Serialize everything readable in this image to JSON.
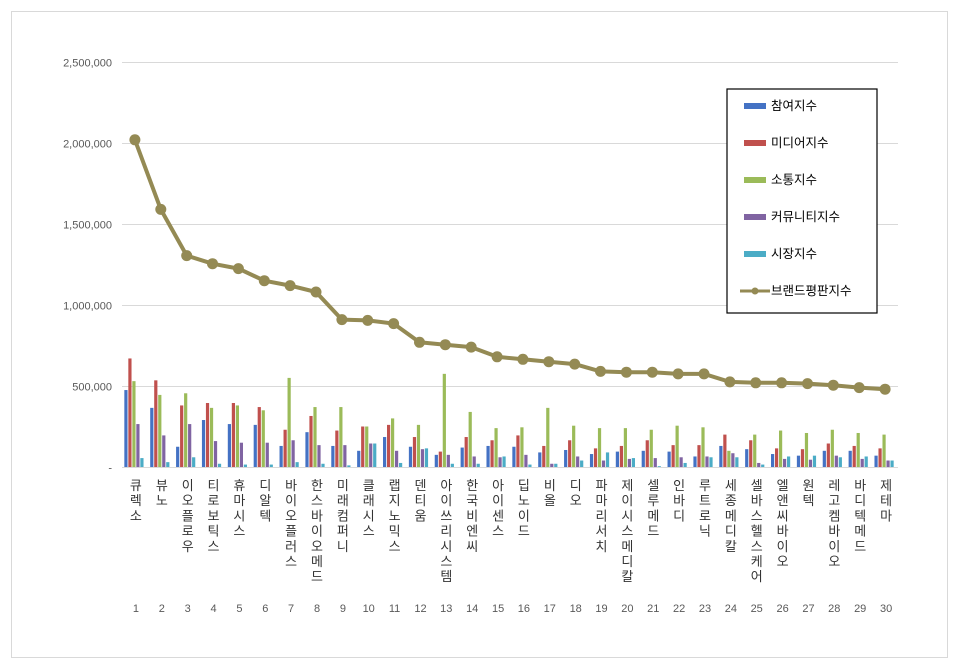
{
  "chart_data": {
    "type": "bar",
    "title": "",
    "xlabel": "",
    "ylabel": "",
    "ylim": [
      0,
      2500000
    ],
    "y_ticks": [
      0,
      500000,
      1000000,
      1500000,
      2000000,
      2500000
    ],
    "y_tick_labels": [
      "-",
      "500,000",
      "1,000,000",
      "1,500,000",
      "2,000,000",
      "2,500,000"
    ],
    "grid": true,
    "legend_position": "top-right",
    "categories": [
      "큐렉소",
      "뷰노",
      "이오플로우",
      "티로보틱스",
      "휴마시스",
      "디알텍",
      "바이오플러스",
      "한스바이오메드",
      "미래컴퍼니",
      "클래시스",
      "랩지노믹스",
      "덴티움",
      "아이쓰리시스템",
      "한국비엔씨",
      "아이센스",
      "딥노이드",
      "비올",
      "디오",
      "파마리서치",
      "제이시스메디칼",
      "셀루메드",
      "인바디",
      "루트로닉",
      "세종메디칼",
      "셀바스헬스케어",
      "엘앤씨바이오",
      "원텍",
      "레고켐바이오",
      "바디텍메드",
      "제테마"
    ],
    "ranks": [
      "1",
      "2",
      "3",
      "4",
      "5",
      "6",
      "7",
      "8",
      "9",
      "10",
      "11",
      "12",
      "13",
      "14",
      "15",
      "16",
      "17",
      "18",
      "19",
      "20",
      "21",
      "22",
      "23",
      "24",
      "25",
      "26",
      "27",
      "28",
      "29",
      "30"
    ],
    "series": [
      {
        "name": "참여지수",
        "kind": "bar",
        "color": "#4472c4",
        "values": [
          475000,
          365000,
          125000,
          290000,
          265000,
          260000,
          130000,
          215000,
          130000,
          100000,
          185000,
          125000,
          75000,
          120000,
          130000,
          125000,
          90000,
          105000,
          80000,
          95000,
          100000,
          95000,
          65000,
          130000,
          110000,
          80000,
          70000,
          100000,
          100000,
          70000
        ]
      },
      {
        "name": "미디어지수",
        "kind": "bar",
        "color": "#c0504d",
        "values": [
          670000,
          535000,
          380000,
          395000,
          395000,
          370000,
          230000,
          315000,
          225000,
          250000,
          260000,
          185000,
          95000,
          185000,
          165000,
          195000,
          130000,
          165000,
          115000,
          130000,
          165000,
          135000,
          135000,
          200000,
          165000,
          115000,
          110000,
          145000,
          130000,
          115000
        ]
      },
      {
        "name": "소통지수",
        "kind": "bar",
        "color": "#9bbb59",
        "values": [
          530000,
          445000,
          455000,
          365000,
          380000,
          350000,
          550000,
          370000,
          370000,
          250000,
          300000,
          260000,
          575000,
          340000,
          240000,
          245000,
          365000,
          255000,
          240000,
          240000,
          230000,
          255000,
          245000,
          100000,
          200000,
          225000,
          210000,
          230000,
          210000,
          200000
        ]
      },
      {
        "name": "커뮤니티지수",
        "kind": "bar",
        "color": "#8064a2",
        "values": [
          265000,
          195000,
          265000,
          160000,
          150000,
          150000,
          165000,
          135000,
          135000,
          145000,
          100000,
          110000,
          75000,
          65000,
          60000,
          75000,
          20000,
          65000,
          40000,
          50000,
          55000,
          60000,
          65000,
          85000,
          25000,
          50000,
          45000,
          70000,
          50000,
          40000
        ]
      },
      {
        "name": "시장지수",
        "kind": "bar",
        "color": "#4bacc6",
        "values": [
          55000,
          30000,
          60000,
          20000,
          15000,
          15000,
          30000,
          20000,
          10000,
          145000,
          25000,
          115000,
          20000,
          20000,
          65000,
          15000,
          20000,
          40000,
          90000,
          55000,
          5000,
          25000,
          60000,
          60000,
          15000,
          65000,
          70000,
          60000,
          65000,
          40000
        ]
      },
      {
        "name": "브랜드평판지수",
        "kind": "line",
        "color": "#948a54",
        "values": [
          2020000,
          1590000,
          1305000,
          1255000,
          1225000,
          1150000,
          1120000,
          1080000,
          910000,
          905000,
          885000,
          770000,
          755000,
          740000,
          680000,
          665000,
          650000,
          635000,
          590000,
          585000,
          585000,
          575000,
          575000,
          525000,
          520000,
          520000,
          515000,
          505000,
          490000,
          480000
        ]
      }
    ]
  }
}
